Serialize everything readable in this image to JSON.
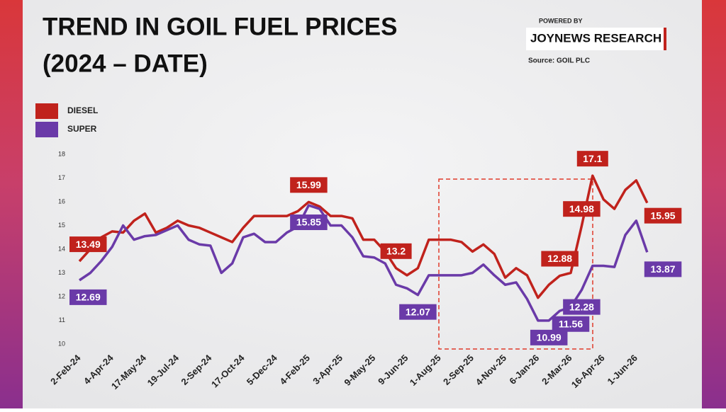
{
  "chart_data": {
    "type": "line",
    "title_lines": [
      "TREND IN GOIL FUEL PRICES",
      "(2024 – DATE)"
    ],
    "powered_by": "POWERED BY",
    "brand": "JOYNEWS RESEARCH",
    "source": "Source: GOIL PLC",
    "categories": [
      "2-Feb-24",
      null,
      null,
      "4-Apr-24",
      null,
      null,
      "17-May-24",
      null,
      null,
      "19-Jul-24",
      null,
      null,
      "2-Sep-24",
      null,
      null,
      "17-Oct-24",
      null,
      null,
      "5-Dec-24",
      null,
      null,
      "4-Feb-25",
      null,
      null,
      "3-Apr-25",
      null,
      null,
      "9-May-25",
      null,
      null,
      "9-Jun-25",
      null,
      null,
      "1-Aug-25",
      null,
      null,
      "2-Sep-25",
      null,
      null,
      "4-Nov-25",
      null,
      null,
      "6-Jan-26",
      null,
      null,
      "2-Mar-26",
      null,
      null,
      "16-Apr-26",
      null,
      null,
      "1-Jun-26",
      null
    ],
    "series": [
      {
        "name": "DIESEL",
        "color": "#c0221c",
        "values": [
          13.49,
          14.0,
          14.5,
          14.75,
          14.7,
          15.2,
          15.5,
          14.7,
          14.9,
          15.2,
          15.0,
          14.9,
          14.7,
          14.5,
          14.3,
          14.9,
          15.4,
          15.4,
          15.4,
          15.4,
          15.6,
          15.99,
          15.8,
          15.4,
          15.4,
          15.3,
          14.4,
          14.4,
          13.9,
          13.2,
          12.9,
          13.2,
          14.4,
          14.4,
          14.4,
          14.3,
          13.9,
          14.2,
          13.8,
          12.8,
          13.2,
          12.9,
          11.95,
          12.5,
          12.88,
          13.0,
          14.98,
          17.1,
          16.1,
          15.7,
          16.5,
          16.9,
          15.95
        ],
        "value_labels": [
          "13.49",
          null,
          null,
          null,
          null,
          null,
          null,
          null,
          null,
          null,
          null,
          null,
          null,
          null,
          null,
          null,
          null,
          null,
          null,
          null,
          null,
          "15.99",
          null,
          null,
          null,
          null,
          null,
          null,
          null,
          "13.2",
          null,
          null,
          null,
          null,
          null,
          null,
          null,
          null,
          null,
          null,
          null,
          null,
          null,
          null,
          "12.88",
          null,
          "14.98",
          "17.1",
          null,
          null,
          null,
          null,
          "15.95"
        ]
      },
      {
        "name": "SUPER",
        "color": "#6a3aa8",
        "values": [
          12.69,
          13.0,
          13.5,
          14.1,
          15.0,
          14.4,
          14.55,
          14.6,
          14.8,
          15.0,
          14.4,
          14.2,
          14.15,
          13.0,
          13.4,
          14.5,
          14.65,
          14.3,
          14.3,
          14.7,
          14.95,
          15.85,
          15.7,
          15.0,
          15.0,
          14.5,
          13.7,
          13.65,
          13.4,
          12.5,
          12.35,
          12.07,
          12.9,
          12.9,
          12.9,
          12.9,
          13.0,
          13.35,
          12.9,
          12.5,
          12.6,
          11.9,
          10.99,
          10.99,
          11.4,
          11.56,
          12.28,
          13.3,
          13.3,
          13.25,
          14.6,
          15.2,
          13.87
        ],
        "value_labels": [
          "12.69",
          null,
          null,
          null,
          null,
          null,
          null,
          null,
          null,
          null,
          null,
          null,
          null,
          null,
          null,
          null,
          null,
          null,
          null,
          null,
          null,
          "15.85",
          null,
          null,
          null,
          null,
          null,
          null,
          null,
          null,
          null,
          "12.07",
          null,
          null,
          null,
          null,
          null,
          null,
          null,
          null,
          null,
          null,
          null,
          "10.99",
          null,
          "11.56",
          "12.28",
          null,
          null,
          null,
          null,
          null,
          "13.87"
        ]
      }
    ],
    "ylim": [
      10,
      18
    ],
    "yticks": [
      10,
      11,
      12,
      13,
      14,
      15,
      16,
      17,
      18
    ],
    "grid": false
  }
}
